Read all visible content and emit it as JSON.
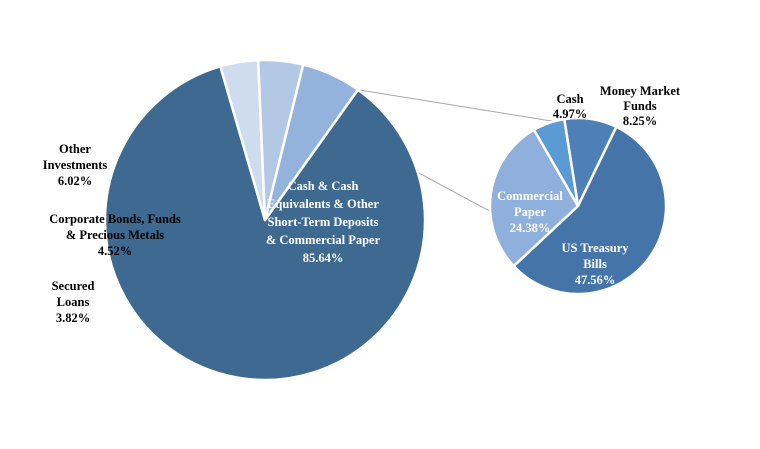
{
  "chart_data": [
    {
      "type": "pie",
      "slices": [
        {
          "lines": [
            "Cash & Cash",
            "Equivalents & Other",
            "Short-Term Deposits",
            "& Commercial Paper",
            "85.64%"
          ],
          "label": "Cash & Cash Equivalents & Other Short-Term Deposits & Commercial Paper",
          "value": 85.64,
          "display": "85.64%",
          "color": "#3e6990",
          "text_color": "#ffffff"
        },
        {
          "lines": [
            "Secured",
            "Loans",
            "3.82%"
          ],
          "label": "Secured Loans",
          "value": 3.82,
          "display": "3.82%",
          "color": "#cfdcee",
          "text_color": "#000000"
        },
        {
          "lines": [
            "Corporate Bonds, Funds",
            "& Precious Metals",
            "4.52%"
          ],
          "label": "Corporate Bonds, Funds & Precious Metals",
          "value": 4.52,
          "display": "4.52%",
          "color": "#b3c8e4",
          "text_color": "#000000"
        },
        {
          "lines": [
            "Other",
            "Investments",
            "6.02%"
          ],
          "label": "Other Investments",
          "value": 6.02,
          "display": "6.02%",
          "color": "#93b2dc",
          "text_color": "#000000"
        }
      ]
    },
    {
      "type": "pie",
      "slices": [
        {
          "lines": [
            "Money Market",
            "Funds",
            "8.25%"
          ],
          "label": "Money Market Funds",
          "value": 8.25,
          "display": "8.25%",
          "color": "#4f7fb7",
          "text_color": "#000000"
        },
        {
          "lines": [
            "US Treasury",
            "Bills",
            "47.56%"
          ],
          "label": "US Treasury Bills",
          "value": 47.56,
          "display": "47.56%",
          "color": "#4574a8",
          "text_color": "#ffffff"
        },
        {
          "lines": [
            "Commercial",
            "Paper",
            "24.38%"
          ],
          "label": "Commercial Paper",
          "value": 24.38,
          "display": "24.38%",
          "color": "#8fb0dc",
          "text_color": "#ffffff"
        },
        {
          "lines": [
            "Cash",
            "4.97%"
          ],
          "label": "Cash",
          "value": 4.97,
          "display": "4.97%",
          "color": "#5b9bd5",
          "text_color": "#000000"
        }
      ]
    }
  ]
}
